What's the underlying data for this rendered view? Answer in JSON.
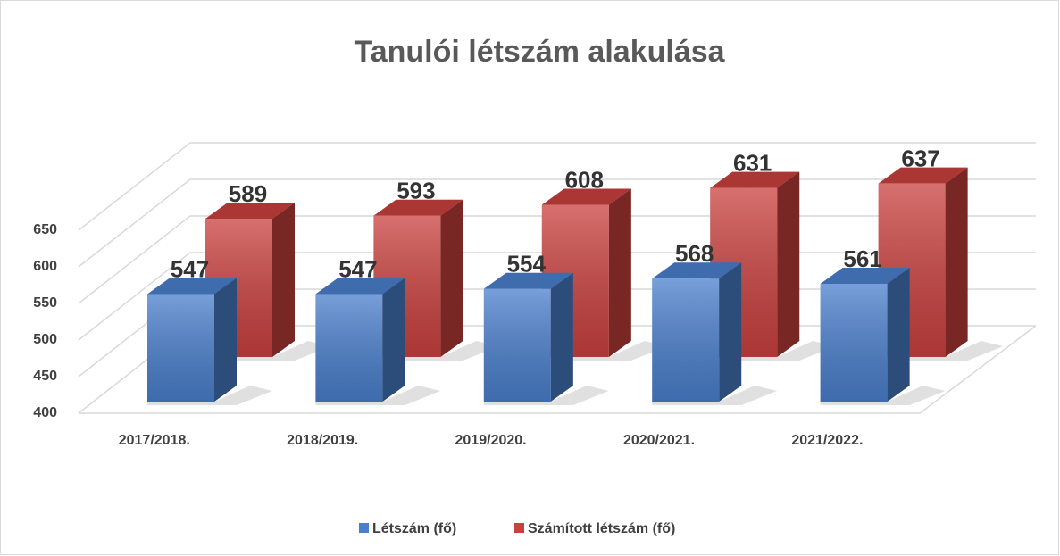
{
  "chart_data": {
    "type": "bar3d",
    "title": "Tanulói létszám alakulása",
    "categories": [
      "2017/2018.",
      "2018/2019.",
      "2019/2020.",
      "2020/2021.",
      "2021/2022."
    ],
    "series": [
      {
        "name": "Létszám (fő)",
        "color": "#4a7fcc",
        "values": [
          547,
          547,
          554,
          568,
          561
        ]
      },
      {
        "name": "Számított létszám (fő)",
        "color": "#c9413f",
        "values": [
          589,
          593,
          608,
          631,
          637
        ]
      }
    ],
    "ylim": [
      400,
      650
    ],
    "yticks": [
      400,
      450,
      500,
      550,
      600,
      650
    ],
    "grid": true,
    "legend": "bottom"
  }
}
